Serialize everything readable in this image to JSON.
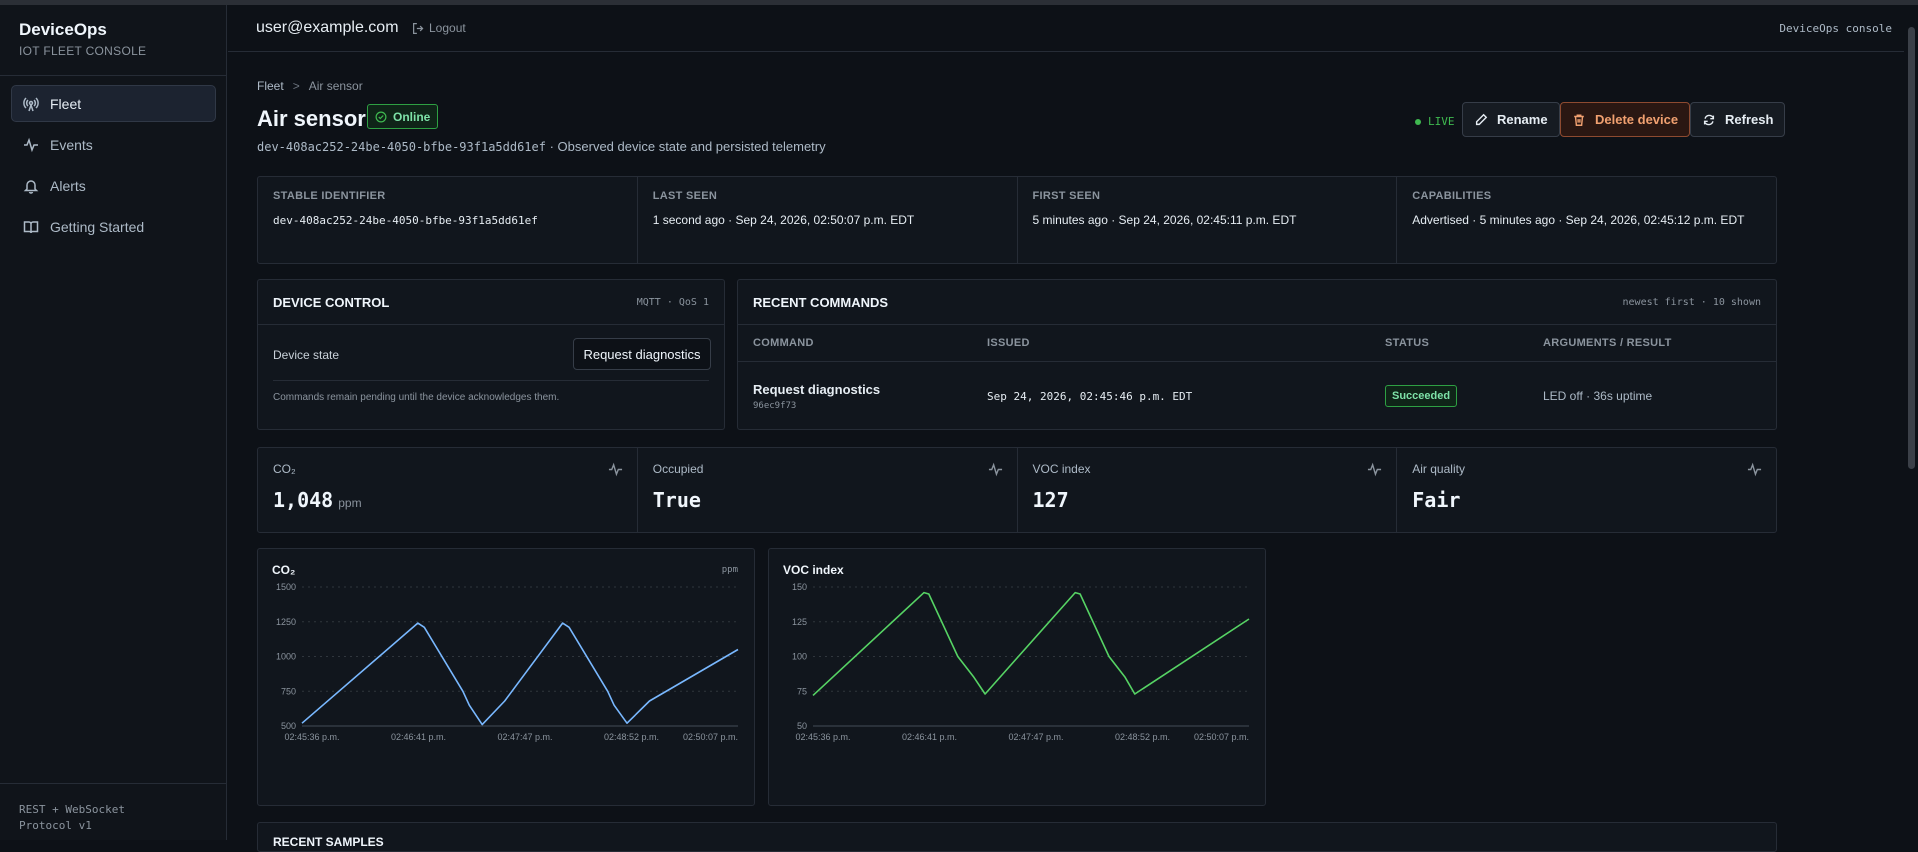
{
  "sidebar": {
    "brand": "DeviceOps",
    "subtitle": "IOT FLEET CONSOLE",
    "items": [
      {
        "label": "Fleet",
        "icon": "antenna-icon"
      },
      {
        "label": "Events",
        "icon": "activity-icon"
      },
      {
        "label": "Alerts",
        "icon": "bell-icon"
      },
      {
        "label": "Getting Started",
        "icon": "book-icon"
      }
    ],
    "footer_line1": "REST + WebSocket",
    "footer_line2": "Protocol v1"
  },
  "topbar": {
    "user": "user@example.com",
    "logout": "Logout",
    "console": "DeviceOps console"
  },
  "breadcrumb": {
    "root": "Fleet",
    "separator": ">",
    "current": "Air sensor"
  },
  "device": {
    "name": "Air sensor",
    "status": "Online",
    "subline": "dev-408ac252-24be-4050-bfbe-93f1a5dd61ef · Observed device state and persisted telemetry"
  },
  "actions": {
    "live": "LIVE",
    "rename": "Rename",
    "delete": "Delete device",
    "refresh": "Refresh"
  },
  "info": [
    {
      "label": "STABLE IDENTIFIER",
      "value": "dev-408ac252-24be-4050-bfbe-93f1a5dd61ef"
    },
    {
      "label": "LAST SEEN",
      "value": "1 second ago · Sep 24, 2026, 02:50:07 p.m. EDT"
    },
    {
      "label": "FIRST SEEN",
      "value": "5 minutes ago · Sep 24, 2026, 02:45:11 p.m. EDT"
    },
    {
      "label": "CAPABILITIES",
      "value": "Advertised · 5 minutes ago · Sep 24, 2026, 02:45:12 p.m. EDT"
    }
  ],
  "control": {
    "title": "DEVICE CONTROL",
    "meta": "MQTT · QoS 1",
    "state_label": "Device state",
    "button": "Request diagnostics",
    "note": "Commands remain pending until the device acknowledges them."
  },
  "commands": {
    "title": "RECENT COMMANDS",
    "meta": "newest first · 10 shown",
    "columns": [
      "COMMAND",
      "ISSUED",
      "STATUS",
      "ARGUMENTS / RESULT"
    ],
    "rows": [
      {
        "name": "Request diagnostics",
        "id": "96ec9f73",
        "issued": "Sep 24, 2026, 02:45:46 p.m. EDT",
        "status": "Succeeded",
        "result": "LED off · 36s uptime"
      }
    ]
  },
  "metrics": [
    {
      "label": "CO₂",
      "value": "1,048",
      "unit": "ppm"
    },
    {
      "label": "Occupied",
      "value": "True",
      "unit": ""
    },
    {
      "label": "VOC index",
      "value": "127",
      "unit": ""
    },
    {
      "label": "Air quality",
      "value": "Fair",
      "unit": ""
    }
  ],
  "chart_data": [
    {
      "type": "line",
      "title": "CO₂",
      "unit": "ppm",
      "color": "#79b8ff",
      "ylim": [
        500,
        1500
      ],
      "yticks": [
        500,
        750,
        1000,
        1250,
        1500
      ],
      "xticks": [
        "02:45:36 p.m.",
        "02:46:41 p.m.",
        "02:47:47 p.m.",
        "02:48:52 p.m.",
        "02:50:07 p.m."
      ],
      "xlim": [
        0,
        271
      ],
      "x": [
        0,
        72,
        76,
        100,
        104,
        112,
        126,
        162,
        166,
        190,
        194,
        202,
        216,
        271
      ],
      "y": [
        520,
        1240,
        1210,
        750,
        650,
        510,
        680,
        1240,
        1210,
        750,
        650,
        520,
        680,
        1050
      ]
    },
    {
      "type": "line",
      "title": "VOC index",
      "unit": "",
      "color": "#56d364",
      "ylim": [
        50,
        150
      ],
      "yticks": [
        50,
        75,
        100,
        125,
        150
      ],
      "xticks": [
        "02:45:36 p.m.",
        "02:46:41 p.m.",
        "02:47:47 p.m.",
        "02:48:52 p.m.",
        "02:50:07 p.m."
      ],
      "xlim": [
        0,
        271
      ],
      "x": [
        0,
        69,
        72,
        90,
        100,
        107,
        163,
        166,
        184,
        194,
        200,
        271
      ],
      "y": [
        72,
        146,
        145,
        100,
        85,
        73,
        146,
        145,
        100,
        85,
        73,
        127
      ]
    }
  ],
  "next_section": "RECENT SAMPLES"
}
